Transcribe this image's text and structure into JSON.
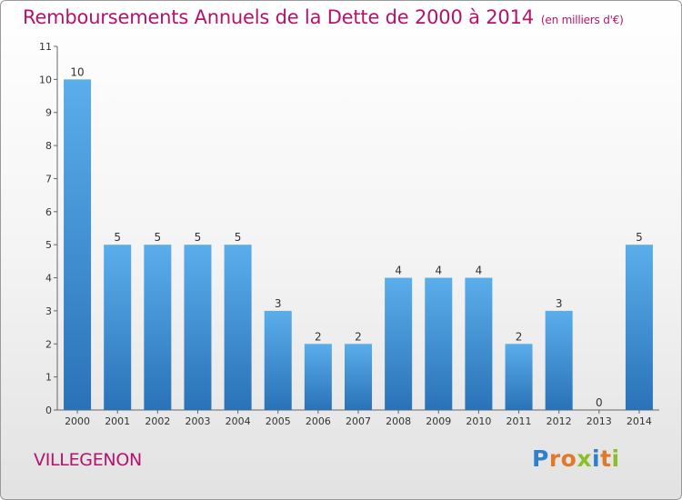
{
  "title": "Remboursements Annuels de la Dette de 2000 à 2014",
  "unit": "(en milliers d'€)",
  "city": "VILLEGENON",
  "logo": {
    "letters": [
      "P",
      "r",
      "o",
      "x",
      "i",
      "t",
      "i"
    ],
    "colors": [
      "#2f7fd0",
      "#e0792a",
      "#e0792a",
      "#8bbf2a",
      "#2f7fd0",
      "#e0792a",
      "#8bbf2a"
    ]
  },
  "colors": {
    "bar_light": "#5aaeea",
    "bar_dark": "#2a72b8",
    "title": "#b5126d"
  },
  "chart_data": {
    "type": "bar",
    "title": "Remboursements Annuels de la Dette de 2000 à 2014",
    "xlabel": "",
    "ylabel": "",
    "categories": [
      "2000",
      "2001",
      "2002",
      "2003",
      "2004",
      "2005",
      "2006",
      "2007",
      "2008",
      "2009",
      "2010",
      "2011",
      "2012",
      "2013",
      "2014"
    ],
    "values": [
      10,
      5,
      5,
      5,
      5,
      3,
      2,
      2,
      4,
      4,
      4,
      2,
      3,
      0,
      5
    ],
    "ylim": [
      0,
      11
    ],
    "yticks": [
      "0",
      "1",
      "2",
      "3",
      "4",
      "5",
      "6",
      "7",
      "8",
      "9",
      "10",
      "11"
    ]
  }
}
